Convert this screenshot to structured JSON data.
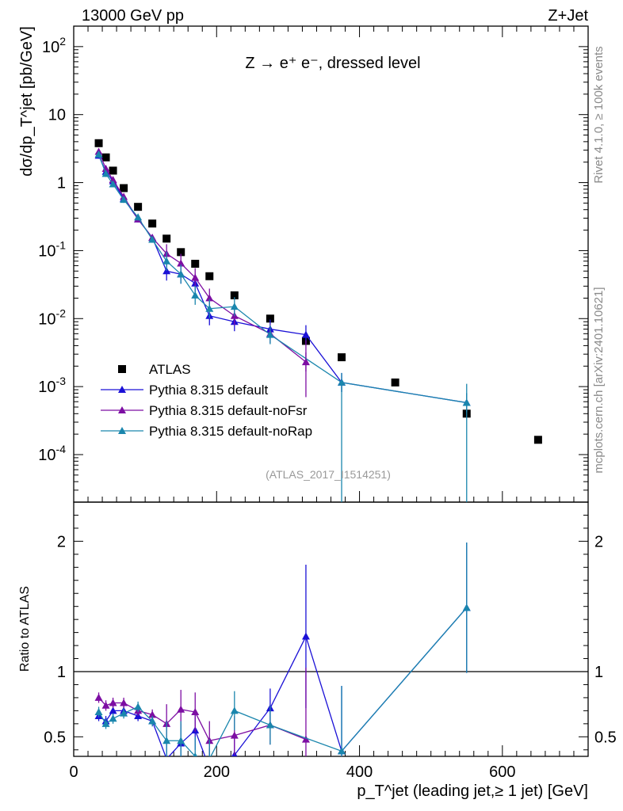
{
  "header": {
    "left": "13000 GeV pp",
    "right": "Z+Jet"
  },
  "side": {
    "rivet": "Rivet 4.1.0, ≥ 100k events",
    "mcplots": "mcplots.cern.ch [arXiv:2401.10621]"
  },
  "annotation": {
    "process": "Z → e⁺ e⁻, dressed level",
    "analysis": "(ATLAS_2017_I1514251)"
  },
  "colors": {
    "atlas": "#000000",
    "default": "#1a10d6",
    "noFsr": "#7d0ea3",
    "noRap": "#1a86ad"
  },
  "chart_data": [
    {
      "type": "scatter",
      "panel": "main",
      "ylabel": "dσ/dp_T^jet [pb/GeV]",
      "yscale": "log",
      "ylim": [
        2e-05,
        200
      ],
      "xlim": [
        0,
        720
      ],
      "legend_position": "lower-left",
      "y_tick_labels": [
        "10^-4",
        "10^-3",
        "10^-2",
        "10^-1",
        "1",
        "10",
        "10^2"
      ],
      "series": [
        {
          "name": "ATLAS",
          "marker": "square",
          "x": [
            35,
            45,
            55,
            70,
            90,
            110,
            130,
            150,
            170,
            190,
            225,
            275,
            325,
            375,
            450,
            550,
            650
          ],
          "y": [
            3.8,
            2.35,
            1.5,
            0.83,
            0.44,
            0.25,
            0.15,
            0.095,
            0.064,
            0.042,
            0.022,
            0.01,
            0.0047,
            0.0027,
            0.00115,
            0.0004,
            0.000165
          ]
        },
        {
          "name": "Pythia 8.315 default",
          "marker": "triangle",
          "line": true,
          "x": [
            35,
            45,
            55,
            70,
            90,
            110,
            130,
            150,
            170,
            190,
            225,
            275,
            325,
            375,
            550
          ],
          "y": [
            2.5,
            1.45,
            1.05,
            0.58,
            0.29,
            0.155,
            0.05,
            0.045,
            0.033,
            0.011,
            0.009,
            0.007,
            0.0058,
            0.00115,
            0.00058
          ]
        },
        {
          "name": "Pythia 8.315 default-noFsr",
          "marker": "triangle",
          "line": true,
          "x": [
            35,
            45,
            55,
            70,
            90,
            110,
            130,
            150,
            170,
            190,
            225,
            275,
            325
          ],
          "y": [
            2.85,
            1.6,
            1.1,
            0.62,
            0.29,
            0.155,
            0.09,
            0.065,
            0.04,
            0.02,
            0.011,
            0.006,
            0.0023
          ]
        },
        {
          "name": "Pythia 8.315 default-noRap",
          "marker": "triangle",
          "line": true,
          "x": [
            35,
            45,
            55,
            70,
            90,
            110,
            130,
            150,
            170,
            190,
            225,
            275,
            375,
            550
          ],
          "y": [
            2.6,
            1.35,
            0.95,
            0.56,
            0.31,
            0.145,
            0.07,
            0.045,
            0.022,
            0.014,
            0.015,
            0.0058,
            0.00115,
            0.00058
          ]
        }
      ]
    },
    {
      "type": "line",
      "panel": "ratio",
      "ylabel": "Ratio to ATLAS",
      "xlabel": "p_T^jet (leading jet,≥ 1 jet) [GeV]",
      "ylim": [
        0.35,
        2.3
      ],
      "xlim": [
        0,
        720
      ],
      "y_tick_labels": [
        "0.5",
        "1",
        "2"
      ],
      "x_tick_labels": [
        "0",
        "200",
        "400",
        "600"
      ],
      "reference_line": 1,
      "series": [
        {
          "name": "Pythia 8.315 default",
          "x": [
            35,
            45,
            55,
            70,
            90,
            110,
            130,
            150,
            170,
            190,
            225,
            275,
            325,
            375,
            550
          ],
          "y": [
            0.66,
            0.62,
            0.7,
            0.7,
            0.66,
            0.62,
            0.33,
            0.45,
            0.55,
            0.26,
            0.36,
            0.72,
            1.27,
            0.39,
            1.49
          ]
        },
        {
          "name": "Pythia 8.315 default-noFsr",
          "x": [
            35,
            45,
            55,
            70,
            90,
            110,
            130,
            150,
            170,
            190,
            225,
            275,
            325
          ],
          "y": [
            0.8,
            0.74,
            0.76,
            0.76,
            0.7,
            0.67,
            0.6,
            0.71,
            0.69,
            0.47,
            0.51,
            0.59,
            0.48
          ]
        },
        {
          "name": "Pythia 8.315 default-noRap",
          "x": [
            35,
            45,
            55,
            70,
            90,
            110,
            130,
            150,
            170,
            190,
            225,
            275,
            375,
            550
          ],
          "y": [
            0.69,
            0.6,
            0.64,
            0.68,
            0.73,
            0.62,
            0.47,
            0.47,
            0.35,
            0.33,
            0.7,
            0.59,
            0.39,
            1.49
          ]
        }
      ]
    }
  ]
}
